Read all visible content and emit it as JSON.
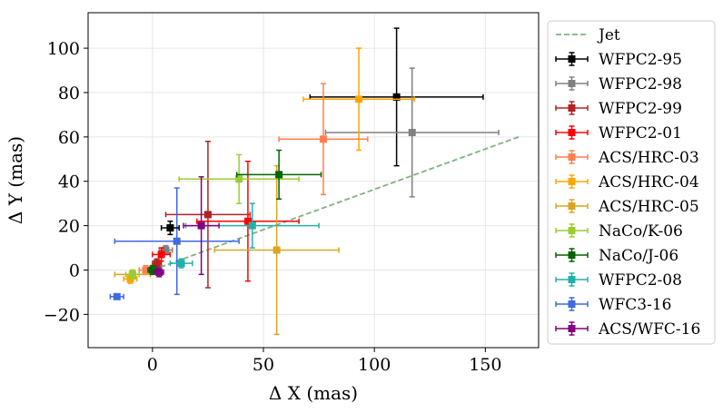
{
  "chart_data": {
    "type": "scatter",
    "title": "",
    "xlabel": "Δ X (mas)",
    "ylabel": "Δ Y (mas)",
    "xlim": [
      -29,
      174
    ],
    "ylim": [
      -35,
      116
    ],
    "xticks": [
      0,
      50,
      100,
      150
    ],
    "yticks": [
      -20,
      0,
      20,
      40,
      60,
      80,
      100
    ],
    "xtick_labels": [
      "0",
      "50",
      "100",
      "150"
    ],
    "ytick_labels": [
      "−20",
      "0",
      "20",
      "40",
      "60",
      "80",
      "100"
    ],
    "grid": true,
    "legend_position": "outside-right",
    "line": {
      "name": "Jet",
      "color": "#7fb27f",
      "style": "dashed",
      "x": [
        0,
        165
      ],
      "y": [
        0,
        60
      ]
    },
    "series": [
      {
        "name": "WFPC2-95",
        "color": "#000000",
        "x": 110,
        "y": 78,
        "xerr": [
          39,
          39
        ],
        "yerr": [
          31,
          31
        ]
      },
      {
        "name": "WFPC2-98",
        "color": "#808080",
        "x": 117,
        "y": 62,
        "xerr": [
          39,
          39
        ],
        "yerr": [
          29,
          29
        ]
      },
      {
        "name": "WFPC2-99",
        "color": "#b22222",
        "x": 25,
        "y": 25,
        "xerr": [
          19,
          19
        ],
        "yerr": [
          33,
          33
        ]
      },
      {
        "name": "WFPC2-01",
        "color": "#ff0000",
        "x": 43,
        "y": 22,
        "xerr": [
          23,
          23
        ],
        "yerr": [
          27,
          27
        ]
      },
      {
        "name": "ACS/HRC-03",
        "color": "#ff7f50",
        "x": 77,
        "y": 59,
        "xerr": [
          20,
          20
        ],
        "yerr": [
          25,
          25
        ]
      },
      {
        "name": "ACS/HRC-04",
        "color": "#ffa500",
        "x": 93,
        "y": 77,
        "xerr": [
          25,
          25
        ],
        "yerr": [
          23,
          23
        ]
      },
      {
        "name": "ACS/HRC-05",
        "color": "#daa520",
        "x": 56,
        "y": 9,
        "xerr": [
          28,
          28
        ],
        "yerr": [
          38,
          38
        ]
      },
      {
        "name": "NaCo/K-06",
        "color": "#9acd32",
        "x": 39,
        "y": 41,
        "xerr": [
          27,
          27
        ],
        "yerr": [
          11,
          11
        ]
      },
      {
        "name": "NaCo/J-06",
        "color": "#006400",
        "x": 57,
        "y": 43,
        "xerr": [
          19,
          19
        ],
        "yerr": [
          11,
          11
        ]
      },
      {
        "name": "WFPC2-08",
        "color": "#20b2aa",
        "x": 45,
        "y": 20,
        "xerr": [
          30,
          30
        ],
        "yerr": [
          10,
          10
        ]
      },
      {
        "name": "WFC3-16",
        "color": "#4169e1",
        "x": 11,
        "y": 13,
        "xerr": [
          28,
          28
        ],
        "yerr": [
          24,
          24
        ]
      },
      {
        "name": "ACS/WFC-16",
        "color": "#800080",
        "x": 22,
        "y": 20,
        "xerr": [
          8,
          8
        ],
        "yerr": [
          22,
          22
        ]
      }
    ],
    "cluster_points": [
      {
        "color": "#000000",
        "x": 8,
        "y": 19,
        "xerr": [
          4,
          4
        ],
        "yerr": [
          3,
          3
        ]
      },
      {
        "color": "#808080",
        "x": 6,
        "y": 9,
        "xerr": [
          3,
          3
        ],
        "yerr": [
          2,
          2
        ]
      },
      {
        "color": "#b22222",
        "x": 2,
        "y": 3,
        "xerr": [
          2,
          2
        ],
        "yerr": [
          2,
          2
        ]
      },
      {
        "color": "#ff0000",
        "x": 4,
        "y": 7,
        "xerr": [
          4,
          4
        ],
        "yerr": [
          3,
          3
        ]
      },
      {
        "color": "#ff7f50",
        "x": -3,
        "y": 0,
        "xerr": [
          3,
          3
        ],
        "yerr": [
          2,
          2
        ]
      },
      {
        "color": "#ffa500",
        "x": -10,
        "y": -4,
        "xerr": [
          3,
          3
        ],
        "yerr": [
          2,
          2
        ]
      },
      {
        "color": "#daa520",
        "x": -9,
        "y": -2,
        "xerr": [
          8,
          8
        ],
        "yerr": [
          2,
          2
        ]
      },
      {
        "color": "#9acd32",
        "x": -9,
        "y": -2,
        "xerr": [
          3,
          3
        ],
        "yerr": [
          2,
          2
        ]
      },
      {
        "color": "#006400",
        "x": 0,
        "y": 0,
        "xerr": [
          2,
          2
        ],
        "yerr": [
          2,
          2
        ]
      },
      {
        "color": "#20b2aa",
        "x": 13,
        "y": 3,
        "xerr": [
          5,
          5
        ],
        "yerr": [
          2,
          2
        ]
      },
      {
        "color": "#4169e1",
        "x": -16,
        "y": -12,
        "xerr": [
          3,
          3
        ],
        "yerr": [
          1,
          1
        ]
      },
      {
        "color": "#800080",
        "x": 3,
        "y": -1,
        "xerr": [
          2,
          2
        ],
        "yerr": [
          2,
          2
        ]
      }
    ]
  }
}
